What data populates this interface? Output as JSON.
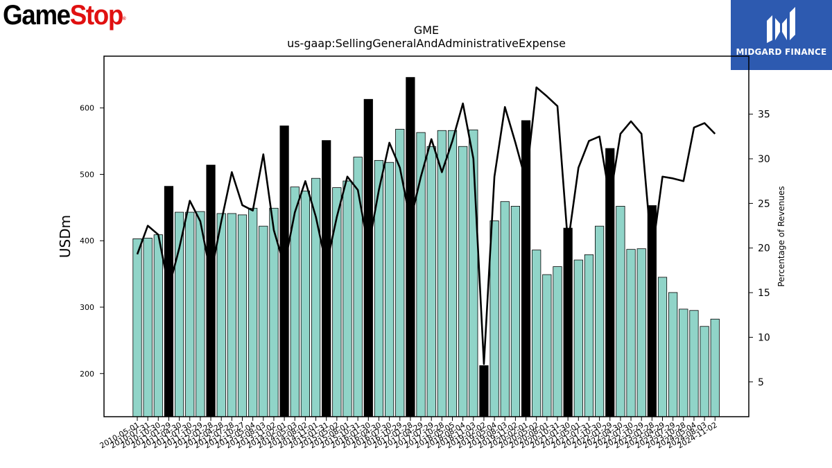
{
  "logos": {
    "left_part1": "Game",
    "left_part2": "Stop",
    "left_tm": "®",
    "right_brand": "MIDGARD FINANCE"
  },
  "colors": {
    "bar_normal": "#90d4c8",
    "bar_highlight": "#000000",
    "line": "#000000",
    "gamestop_red": "#e01010",
    "midgard_blue": "#2d5ab0"
  },
  "chart_data": {
    "type": "bar",
    "title": "GME",
    "subtitle": "us-gaap:SellingGeneralAndAdministrativeExpense",
    "ylabel": "USDm",
    "y2label": "Percentage of Revenues",
    "ylim": [
      135,
      678
    ],
    "y2lim": [
      1.1,
      41.5
    ],
    "yticks": [
      200,
      300,
      400,
      500,
      600
    ],
    "y2ticks": [
      5,
      10,
      15,
      20,
      25,
      30,
      35
    ],
    "xtick_labels": [
      "2010-05-01",
      "2010-07-31",
      "2010-10-30",
      "2011-01-29",
      "2011-04-30",
      "2011-07-30",
      "2011-10-29",
      "2012-01-28",
      "2012-04-28",
      "2012-07-28",
      "2012-10-27",
      "2013-05-04",
      "2013-08-03",
      "2013-11-02",
      "2014-02-01",
      "2014-05-03",
      "2014-08-02",
      "2014-11-01",
      "2015-01-31",
      "2015-05-02",
      "2015-08-01",
      "2015-10-31",
      "2016-01-30",
      "2016-04-30",
      "2016-07-30",
      "2016-10-29",
      "2017-01-28",
      "2017-04-29",
      "2017-07-29",
      "2017-10-28",
      "2018-05-05",
      "2018-08-04",
      "2018-11-03",
      "2019-02-02",
      "2019-05-04",
      "2019-08-03",
      "2019-11-02",
      "2020-02-01",
      "2020-05-02",
      "2020-08-01",
      "2020-10-31",
      "2021-01-30",
      "2021-05-01",
      "2021-07-31",
      "2021-10-30",
      "2022-01-29",
      "2022-04-30",
      "2022-07-30",
      "2022-10-29",
      "2023-01-28",
      "2023-04-29",
      "2023-07-29",
      "2023-10-28",
      "2024-05-04",
      "2024-08-03",
      "2024-11-02"
    ],
    "sga_usdm": [
      403,
      404,
      409,
      482,
      443,
      443,
      444,
      514,
      441,
      441,
      439,
      449,
      422,
      449,
      573,
      481,
      475,
      494,
      551,
      480,
      490,
      526,
      613,
      521,
      518,
      568,
      646,
      563,
      542,
      566,
      566,
      542,
      567,
      212,
      430,
      459,
      452,
      581,
      386,
      349,
      361,
      419,
      371,
      379,
      422,
      539,
      452,
      387,
      388,
      453,
      345,
      322,
      297,
      295,
      271,
      282
    ],
    "highlight": [
      false,
      false,
      false,
      true,
      false,
      false,
      false,
      true,
      false,
      false,
      false,
      false,
      false,
      false,
      true,
      false,
      false,
      false,
      true,
      false,
      false,
      false,
      true,
      false,
      false,
      false,
      true,
      false,
      false,
      false,
      false,
      false,
      false,
      true,
      false,
      false,
      false,
      true,
      false,
      false,
      false,
      true,
      false,
      false,
      false,
      true,
      false,
      false,
      false,
      true,
      false,
      false,
      false,
      false,
      false,
      false
    ],
    "pct_of_revenues": [
      19.3,
      22.5,
      21.5,
      15.5,
      20.0,
      25.3,
      23.0,
      17.0,
      23.0,
      28.5,
      24.8,
      24.2,
      30.5,
      22.0,
      18.0,
      24.0,
      27.5,
      23.5,
      18.0,
      23.5,
      28.0,
      26.5,
      20.0,
      26.5,
      31.8,
      29.0,
      23.0,
      28.0,
      32.2,
      28.5,
      32.0,
      36.2,
      30.0,
      7.0,
      28.0,
      35.8,
      31.8,
      27.5,
      38.0,
      37.0,
      35.9,
      20.5,
      29.0,
      32.0,
      32.5,
      25.5,
      32.8,
      34.2,
      32.8,
      19.3,
      28.0,
      27.8,
      27.5,
      33.5,
      34.0,
      32.8
    ]
  }
}
